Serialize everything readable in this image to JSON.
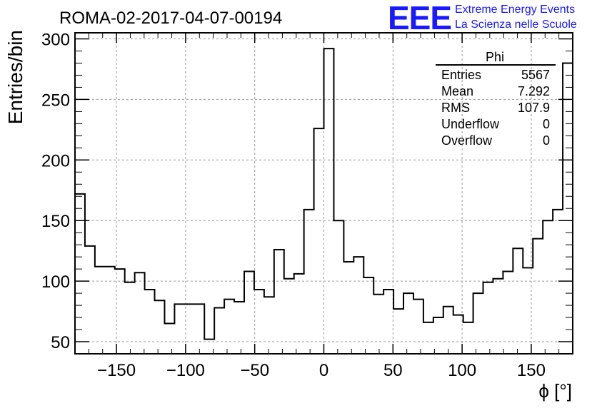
{
  "header": {
    "title": "ROMA-02-2017-04-07-00194",
    "logo_text": "EEE",
    "logo_line1": "Extreme Energy Events",
    "logo_line2": "La Scienza nelle Scuole"
  },
  "stats_box": {
    "name": "Phi",
    "rows": [
      {
        "label": "Entries",
        "value": "5567"
      },
      {
        "label": "Mean",
        "value": "7.292"
      },
      {
        "label": "RMS",
        "value": "107.9"
      },
      {
        "label": "Underflow",
        "value": "0"
      },
      {
        "label": "Overflow",
        "value": "0"
      }
    ]
  },
  "chart_data": {
    "type": "histogram",
    "title": "ROMA-02-2017-04-07-00194",
    "xlabel": "ϕ [°]",
    "ylabel": "Entries/bin",
    "xlim": [
      -180,
      180
    ],
    "ylim": [
      40,
      305
    ],
    "xticks": [
      -150,
      -100,
      -50,
      0,
      50,
      100,
      150
    ],
    "yticks": [
      50,
      100,
      150,
      200,
      250,
      300
    ],
    "grid": true,
    "bin_width": 7.2,
    "bin_start": -180,
    "values": [
      172,
      129,
      112,
      112,
      110,
      99,
      107,
      93,
      84,
      65,
      81,
      81,
      81,
      52,
      78,
      85,
      83,
      108,
      93,
      87,
      126,
      102,
      106,
      159,
      226,
      292,
      150,
      116,
      120,
      103,
      89,
      93,
      77,
      90,
      85,
      66,
      70,
      79,
      72,
      66,
      90,
      99,
      102,
      108,
      127,
      111,
      135,
      150,
      159,
      280
    ]
  }
}
